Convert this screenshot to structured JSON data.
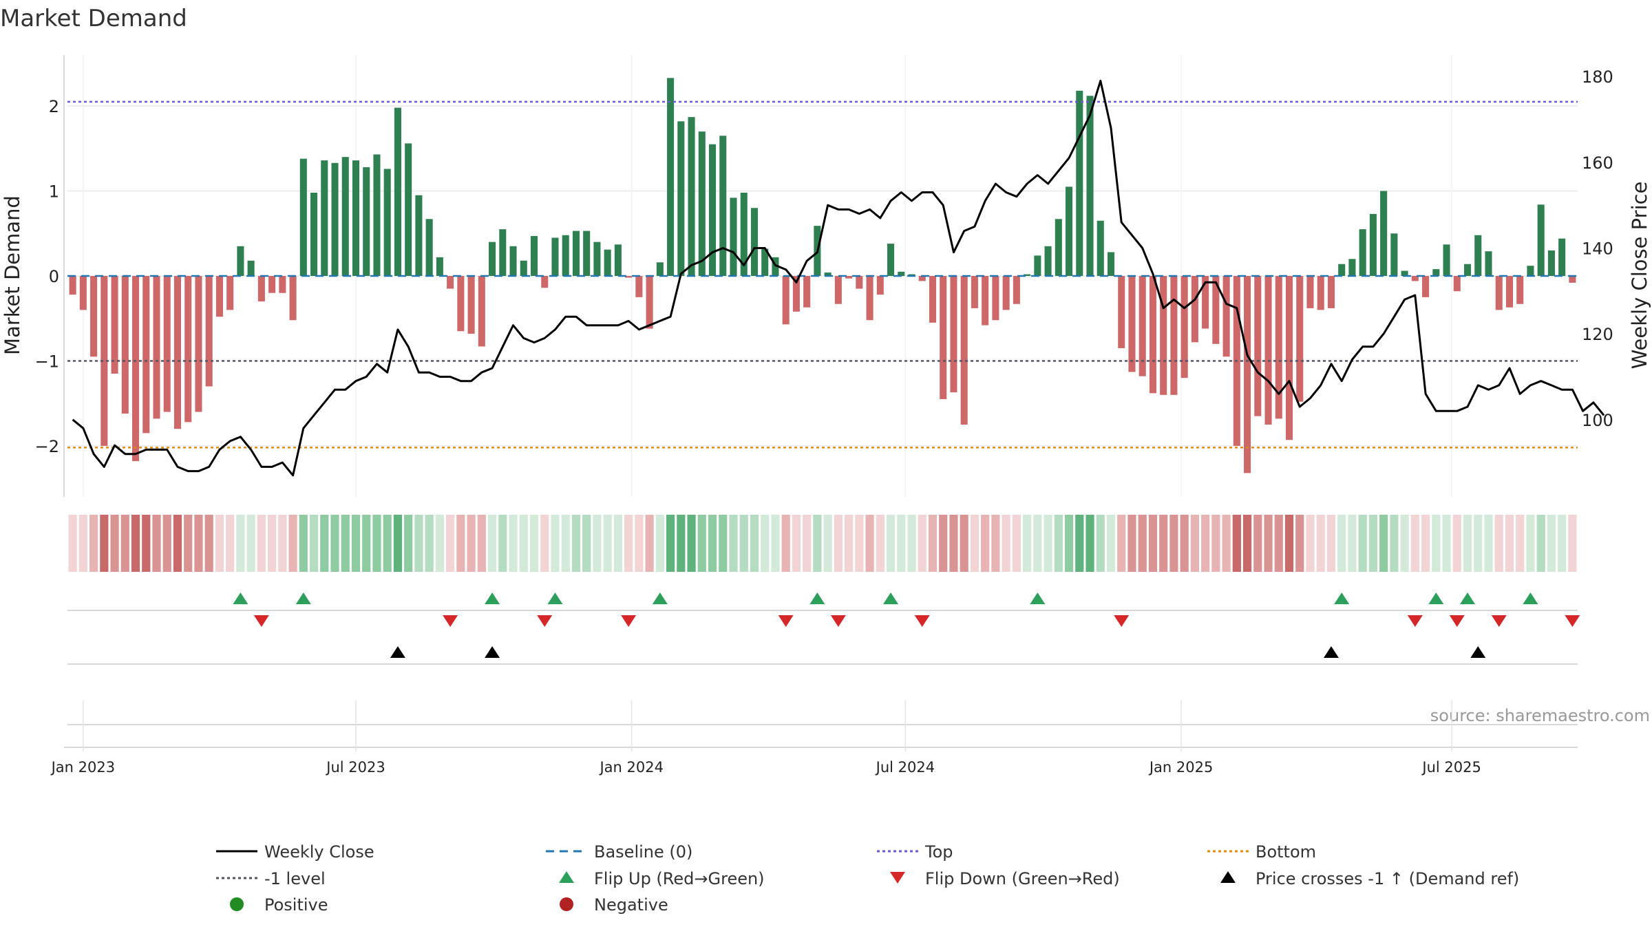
{
  "chart_data": {
    "type": "bar",
    "title": "Market Demand",
    "source_text": "source: sharemaestro.com",
    "ylabel_left": "Market Demand",
    "ylabel_right": "Weekly Close Price",
    "ylim_left": [
      -2.6,
      2.6
    ],
    "ylim_right": [
      82,
      185
    ],
    "left_ticks": [
      {
        "v": 2,
        "label": "2"
      },
      {
        "v": 1,
        "label": "1"
      },
      {
        "v": 0,
        "label": "0"
      },
      {
        "v": -1,
        "label": "−1"
      },
      {
        "v": -2,
        "label": "−2"
      }
    ],
    "right_ticks": [
      {
        "v": 180,
        "label": "180"
      },
      {
        "v": 160,
        "label": "160"
      },
      {
        "v": 140,
        "label": "140"
      },
      {
        "v": 120,
        "label": "120"
      },
      {
        "v": 100,
        "label": "100"
      }
    ],
    "x_ticks": [
      {
        "week": 1.5,
        "label": "Jan 2023"
      },
      {
        "week": 27.5,
        "label": "Jul 2023"
      },
      {
        "week": 53.8,
        "label": "Jan 2024"
      },
      {
        "week": 79.9,
        "label": "Jul 2024"
      },
      {
        "week": 106.2,
        "label": "Jan 2025"
      },
      {
        "week": 132,
        "label": "Jul 2025"
      }
    ],
    "reference_lines": {
      "top": 2.05,
      "bottom": -2.02,
      "minus_one": -1,
      "baseline": 0
    },
    "demand": [
      -0.22,
      -0.4,
      -0.95,
      -2.0,
      -1.15,
      -1.62,
      -2.18,
      -1.85,
      -1.68,
      -1.6,
      -1.8,
      -1.72,
      -1.6,
      -1.3,
      -0.48,
      -0.4,
      0.35,
      0.18,
      -0.3,
      -0.2,
      -0.2,
      -0.52,
      1.38,
      0.98,
      1.36,
      1.33,
      1.4,
      1.36,
      1.28,
      1.43,
      1.26,
      1.98,
      1.56,
      0.95,
      0.67,
      0.22,
      -0.15,
      -0.65,
      -0.68,
      -0.83,
      0.4,
      0.55,
      0.35,
      0.18,
      0.47,
      -0.14,
      0.45,
      0.48,
      0.53,
      0.53,
      0.4,
      0.31,
      0.37,
      -0.02,
      -0.25,
      -0.62,
      0.16,
      2.33,
      1.82,
      1.87,
      1.7,
      1.55,
      1.65,
      0.92,
      0.98,
      0.8,
      0.32,
      0.22,
      -0.57,
      -0.42,
      -0.37,
      0.59,
      0.04,
      -0.33,
      -0.03,
      -0.15,
      -0.52,
      -0.22,
      0.38,
      0.05,
      0.02,
      -0.06,
      -0.55,
      -1.45,
      -1.37,
      -1.75,
      -0.38,
      -0.58,
      -0.52,
      -0.4,
      -0.33,
      0.02,
      0.24,
      0.35,
      0.67,
      1.05,
      2.18,
      2.12,
      0.65,
      0.28,
      -0.85,
      -1.13,
      -1.18,
      -1.38,
      -1.4,
      -1.4,
      -1.2,
      -0.78,
      -0.62,
      -0.8,
      -0.95,
      -2.0,
      -2.32,
      -1.65,
      -1.75,
      -1.68,
      -1.93,
      -1.48,
      -0.38,
      -0.4,
      -0.38,
      0.14,
      0.2,
      0.55,
      0.73,
      1.0,
      0.5,
      0.06,
      -0.06,
      -0.25,
      0.08,
      0.37,
      -0.18,
      0.14,
      0.48,
      0.29,
      -0.4,
      -0.37,
      -0.33,
      0.12,
      0.84,
      0.3,
      0.44,
      -0.08
    ],
    "weekly_close": [
      100,
      98,
      92,
      89,
      94,
      92,
      92,
      93,
      93,
      93,
      89,
      88,
      88,
      89,
      93,
      95,
      96,
      93,
      89,
      89,
      90,
      87,
      98,
      101,
      104,
      107,
      107,
      109,
      110,
      113,
      111,
      121,
      117,
      111,
      111,
      110,
      110,
      109,
      109,
      111,
      112,
      117,
      122,
      119,
      118,
      119,
      121,
      124,
      124,
      122,
      122,
      122,
      122,
      123,
      121,
      122,
      123,
      124,
      134,
      136,
      137,
      139,
      140,
      139,
      136,
      140,
      140,
      136,
      135,
      132,
      137,
      139,
      150,
      149,
      149,
      148,
      149,
      147,
      151,
      153,
      151,
      153,
      153,
      150,
      139,
      144,
      145,
      151,
      155,
      153,
      152,
      155,
      157,
      155,
      158,
      161,
      166,
      171,
      179,
      168,
      146,
      143,
      140,
      134,
      126,
      128,
      126,
      128,
      132,
      132,
      127,
      126,
      115,
      111,
      109,
      106,
      109,
      103,
      105,
      108,
      113,
      109,
      114,
      117,
      117,
      120,
      124,
      128,
      129,
      106,
      102,
      102,
      102,
      103,
      108,
      107,
      108,
      112,
      106,
      108,
      109,
      108,
      107,
      107,
      102,
      104,
      101
    ],
    "flip_up_weeks": [
      16,
      22,
      40,
      46,
      56,
      71,
      78,
      92,
      121,
      130,
      133,
      139
    ],
    "flip_down_weeks": [
      18,
      36,
      45,
      53,
      68,
      73,
      81,
      100,
      128,
      132,
      136,
      143
    ],
    "price_cross_weeks": [
      31,
      40,
      120,
      134
    ],
    "legend": [
      {
        "key": "weekly_close",
        "label": "Weekly Close"
      },
      {
        "key": "baseline",
        "label": "Baseline (0)"
      },
      {
        "key": "top",
        "label": "Top"
      },
      {
        "key": "bottom",
        "label": "Bottom"
      },
      {
        "key": "minus_one",
        "label": "-1 level"
      },
      {
        "key": "flip_up",
        "label": "Flip Up (Red→Green)"
      },
      {
        "key": "flip_down",
        "label": "Flip Down (Green→Red)"
      },
      {
        "key": "price_cross",
        "label": "Price crosses -1 ↑ (Demand ref)"
      },
      {
        "key": "positive",
        "label": "Positive"
      },
      {
        "key": "negative",
        "label": "Negative"
      }
    ]
  },
  "colors": {
    "positive": "#2e8050",
    "negative": "#cb5f5f",
    "price": "#000000",
    "baseline": "#1f77b4",
    "top": "#6a5acd",
    "bottom": "#d98c1a",
    "minus_one": "#555566",
    "flip_up": "#2ca05a",
    "flip_down": "#d62728",
    "price_cross": "#000000",
    "legend_positive": "#228b22",
    "legend_negative": "#b22222",
    "grid": "#e8e8e8",
    "axis": "#cccccc"
  }
}
